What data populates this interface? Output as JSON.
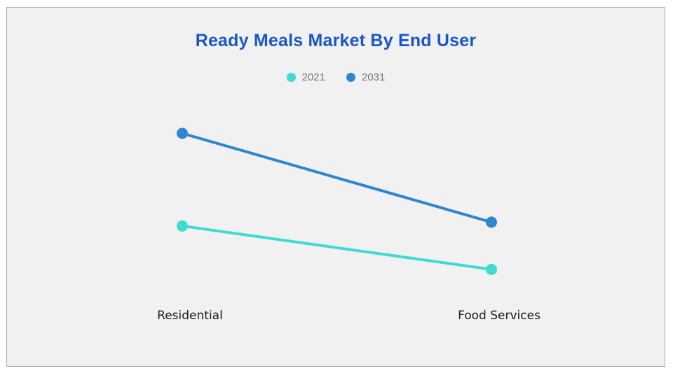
{
  "title": {
    "text": "Ready Meals Market By End User",
    "color": "#1a56c7"
  },
  "panel": {
    "background": "#f1f1f2",
    "border_color": "#adadad"
  },
  "legend": {
    "text_color": "#757575",
    "position": "top-center"
  },
  "x_axis": {
    "label_color": "#1a1a1a"
  },
  "chart_data": {
    "type": "line",
    "title": "Ready Meals Market By End User",
    "categories": [
      "Residential",
      "Food Services"
    ],
    "series": [
      {
        "name": "2021",
        "color": "#3ddbd1",
        "values": [
          36,
          13
        ]
      },
      {
        "name": "2031",
        "color": "#2e86ce",
        "values": [
          85,
          38
        ]
      }
    ],
    "xlabel": "",
    "ylabel": "",
    "ylim": [
      0,
      100
    ],
    "grid": false,
    "value_axis_visible": false,
    "legend_position": "top",
    "note": "No numeric axis or data labels shown; values are relative estimates (0-100) read from point positions"
  }
}
